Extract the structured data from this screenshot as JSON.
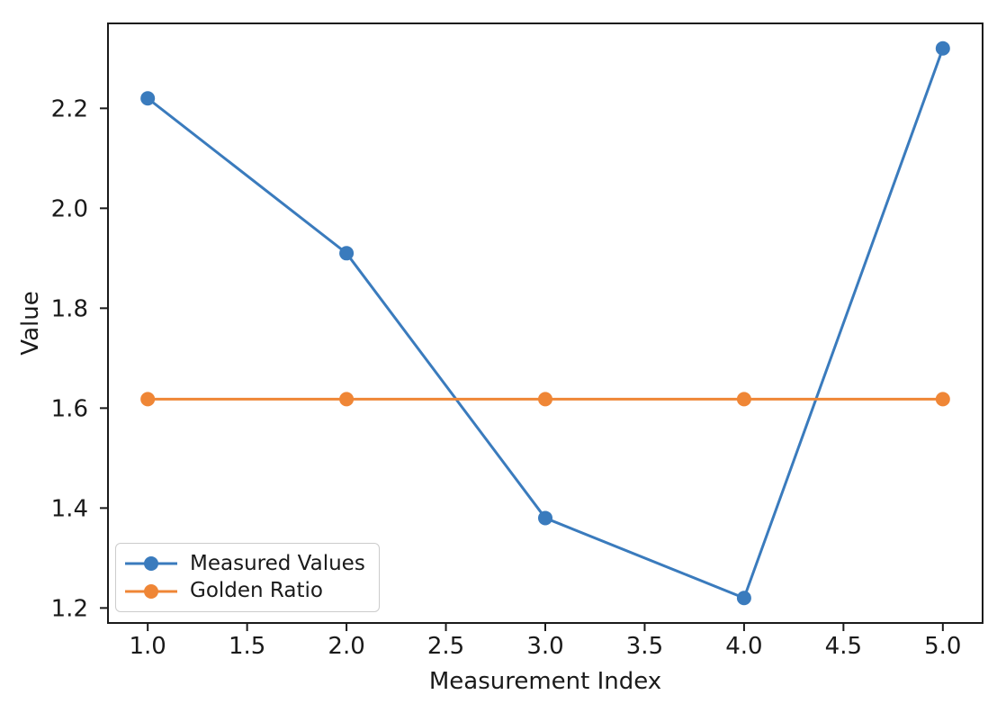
{
  "chart_data": {
    "type": "line",
    "title": "",
    "xlabel": "Measurement Index",
    "ylabel": "Value",
    "x": [
      1.0,
      2.0,
      3.0,
      4.0,
      5.0
    ],
    "series": [
      {
        "name": "Measured Values",
        "color": "#3a7bbd",
        "marker": "o",
        "values": [
          2.22,
          1.91,
          1.38,
          1.22,
          2.32
        ]
      },
      {
        "name": "Golden Ratio",
        "color": "#ef8636",
        "marker": "o",
        "values": [
          1.618,
          1.618,
          1.618,
          1.618,
          1.618
        ]
      }
    ],
    "xlim": [
      0.8,
      5.2
    ],
    "ylim": [
      1.17,
      2.37
    ],
    "xticks": [
      1.0,
      1.5,
      2.0,
      2.5,
      3.0,
      3.5,
      4.0,
      4.5,
      5.0
    ],
    "yticks": [
      1.2,
      1.4,
      1.6,
      1.8,
      2.0,
      2.2
    ],
    "grid": false,
    "legend_position": "lower left",
    "frame_color": "#1a1a1a",
    "background": "#ffffff"
  }
}
